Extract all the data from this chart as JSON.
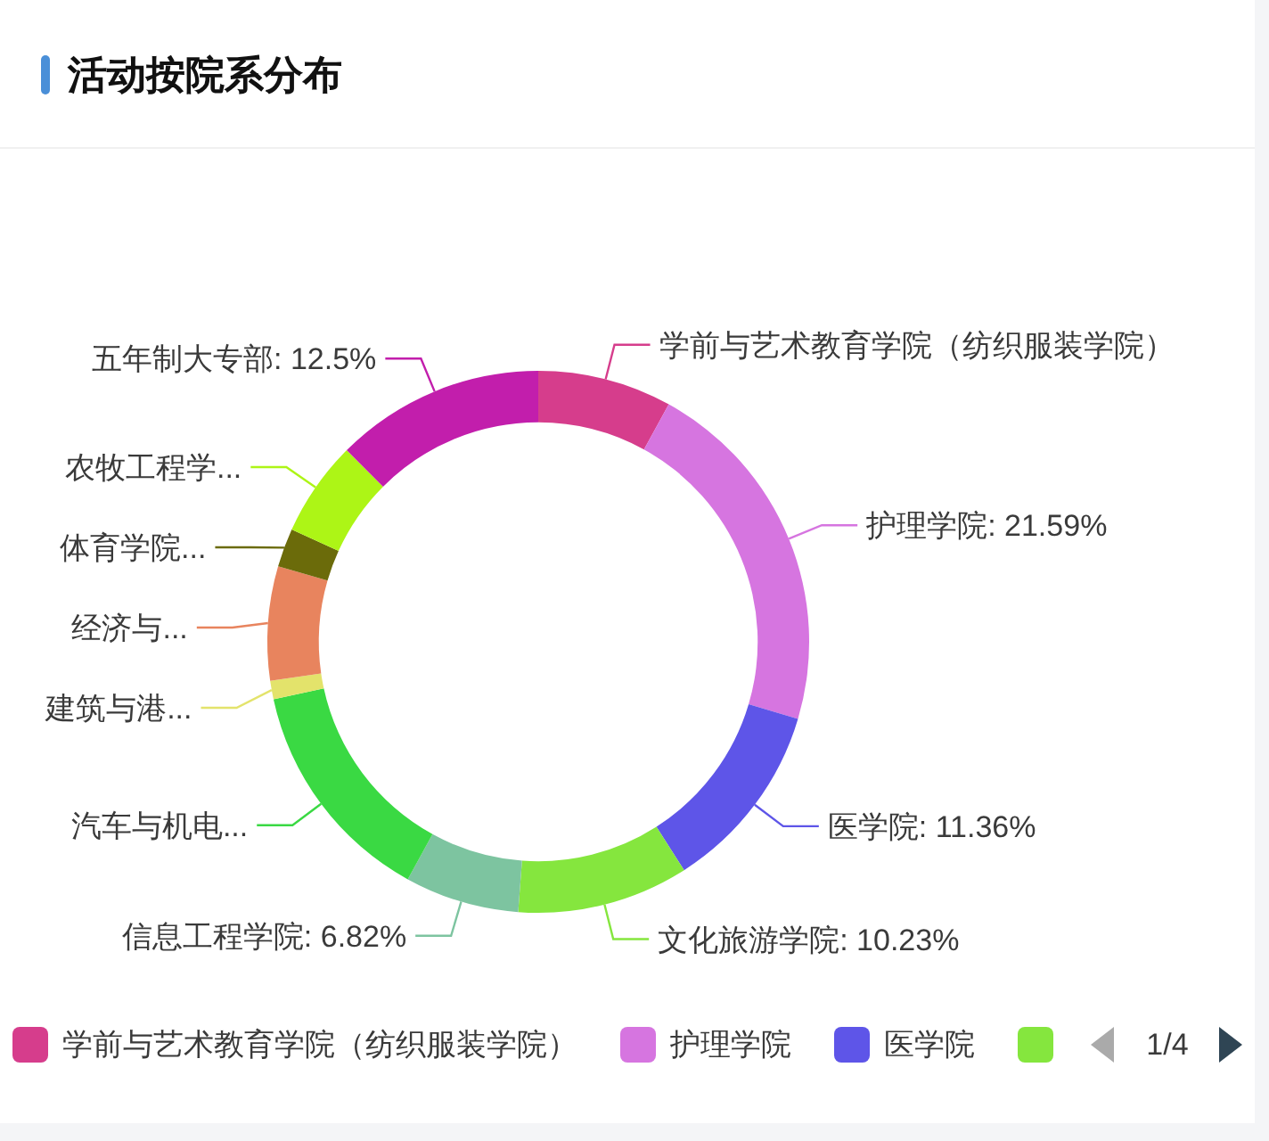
{
  "chart_data": {
    "type": "donut",
    "title": "活动按院系分布",
    "categories": [
      "学前与艺术教育学院（纺织服装学院）",
      "护理学院",
      "医学院",
      "文化旅游学院",
      "信息工程学院",
      "汽车与机电...",
      "建筑与港...",
      "经济与...",
      "体育学院...",
      "农牧工程学...",
      "五年制大专部"
    ],
    "values": [
      8,
      21.59,
      11.36,
      10.23,
      6.82,
      13.6,
      1.1,
      6.8,
      2.3,
      5.7,
      12.5
    ],
    "colors": [
      "#d63d8c",
      "#d675e0",
      "#5e55e8",
      "#85e63e",
      "#7dc4a0",
      "#3ad943",
      "#e3e36b",
      "#e8845e",
      "#6b6b0a",
      "#adf516",
      "#c21eac"
    ],
    "value_labels": [
      null,
      ": 21.59%",
      ": 11.36%",
      ": 10.23%",
      ": 6.82%",
      null,
      null,
      null,
      null,
      null,
      ": 12.5%"
    ],
    "legend": "bottom",
    "annotations": [
      "1/4"
    ]
  }
}
